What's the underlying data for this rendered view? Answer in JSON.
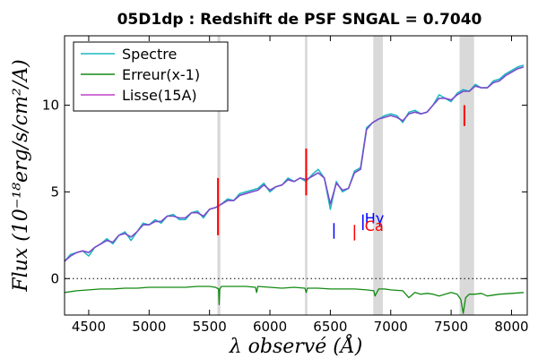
{
  "chart_data": {
    "type": "line",
    "title": "05D1dp : Redshift de PSF SNGAL = 0.7040",
    "xlabel": "λ observé (Å)",
    "ylabel": "Flux (10⁻¹⁸erg/s/cm²/A)",
    "xlim": [
      4300,
      8130
    ],
    "ylim": [
      -2.1,
      14.0
    ],
    "xticks": [
      4500,
      5000,
      5500,
      6000,
      6500,
      7000,
      7500,
      8000
    ],
    "yticks": [
      0,
      5,
      10
    ],
    "legend": {
      "position": "top-left",
      "entries": [
        "Spectre",
        "Erreur(x-1)",
        "Lisse(15A)"
      ]
    },
    "colors": {
      "Spectre": "#1ab8c0",
      "Erreur(x-1)": "#138a13",
      "Lisse(15A)": "#c040c8",
      "Lisse_overlap": "#7a4ccc",
      "sky_residual": "#ff0000",
      "band": "#d9d9d9",
      "line_blue": "#0000ff",
      "line_red": "#ff0000"
    },
    "series": [
      {
        "name": "Spectre",
        "x": [
          4300,
          4350,
          4400,
          4450,
          4500,
          4550,
          4600,
          4650,
          4700,
          4750,
          4800,
          4850,
          4900,
          4950,
          5000,
          5050,
          5100,
          5150,
          5200,
          5250,
          5300,
          5350,
          5400,
          5450,
          5500,
          5550,
          5600,
          5650,
          5700,
          5750,
          5800,
          5850,
          5900,
          5950,
          6000,
          6050,
          6100,
          6150,
          6200,
          6250,
          6300,
          6350,
          6400,
          6450,
          6500,
          6550,
          6600,
          6650,
          6700,
          6750,
          6800,
          6850,
          6900,
          6950,
          7000,
          7050,
          7100,
          7150,
          7200,
          7250,
          7300,
          7350,
          7400,
          7450,
          7500,
          7550,
          7600,
          7650,
          7700,
          7750,
          7800,
          7850,
          7900,
          7950,
          8000,
          8050,
          8100
        ],
        "values": [
          1.0,
          1.4,
          1.5,
          1.6,
          1.3,
          1.8,
          2.0,
          2.3,
          2.0,
          2.5,
          2.7,
          2.2,
          2.7,
          3.2,
          3.1,
          3.4,
          3.2,
          3.6,
          3.7,
          3.4,
          3.4,
          3.8,
          3.9,
          3.5,
          4.0,
          4.1,
          4.3,
          4.6,
          4.5,
          4.9,
          5.0,
          5.1,
          5.2,
          5.5,
          5.0,
          5.3,
          5.4,
          5.8,
          5.6,
          5.8,
          5.6,
          6.0,
          6.3,
          5.8,
          4.0,
          5.6,
          5.0,
          5.2,
          6.2,
          6.4,
          8.7,
          9.0,
          9.2,
          9.4,
          9.5,
          9.4,
          9.0,
          9.6,
          9.7,
          9.5,
          9.6,
          10.0,
          10.6,
          10.4,
          10.2,
          10.7,
          10.9,
          10.8,
          11.2,
          11.0,
          11.0,
          11.4,
          11.5,
          11.8,
          12.0,
          12.2,
          12.3
        ]
      },
      {
        "name": "Lisse(15A)",
        "x": [
          4300,
          4350,
          4400,
          4450,
          4500,
          4550,
          4600,
          4650,
          4700,
          4750,
          4800,
          4850,
          4900,
          4950,
          5000,
          5050,
          5100,
          5150,
          5200,
          5250,
          5300,
          5350,
          5400,
          5450,
          5500,
          5550,
          5600,
          5650,
          5700,
          5750,
          5800,
          5850,
          5900,
          5950,
          6000,
          6050,
          6100,
          6150,
          6200,
          6250,
          6300,
          6350,
          6400,
          6450,
          6500,
          6550,
          6600,
          6650,
          6700,
          6750,
          6800,
          6850,
          6900,
          6950,
          7000,
          7050,
          7100,
          7150,
          7200,
          7250,
          7300,
          7350,
          7400,
          7450,
          7500,
          7550,
          7600,
          7650,
          7700,
          7750,
          7800,
          7850,
          7900,
          7950,
          8000,
          8050,
          8100
        ],
        "values": [
          1.0,
          1.3,
          1.5,
          1.6,
          1.5,
          1.8,
          2.0,
          2.2,
          2.1,
          2.5,
          2.6,
          2.4,
          2.7,
          3.1,
          3.1,
          3.3,
          3.3,
          3.6,
          3.6,
          3.5,
          3.5,
          3.8,
          3.8,
          3.6,
          4.0,
          4.1,
          4.3,
          4.5,
          4.5,
          4.8,
          4.9,
          5.0,
          5.1,
          5.4,
          5.1,
          5.3,
          5.4,
          5.7,
          5.6,
          5.8,
          5.7,
          5.9,
          6.1,
          5.8,
          4.3,
          5.5,
          5.1,
          5.2,
          6.1,
          6.3,
          8.6,
          9.0,
          9.2,
          9.3,
          9.4,
          9.3,
          9.1,
          9.5,
          9.6,
          9.5,
          9.6,
          10.0,
          10.4,
          10.4,
          10.3,
          10.6,
          10.8,
          10.8,
          11.1,
          11.0,
          11.0,
          11.3,
          11.4,
          11.7,
          11.9,
          12.1,
          12.2
        ]
      },
      {
        "name": "Erreur(x-1)",
        "x": [
          4300,
          4400,
          4500,
          4600,
          4700,
          4800,
          4900,
          5000,
          5100,
          5200,
          5300,
          5400,
          5500,
          5550,
          5575,
          5580,
          5585,
          5600,
          5700,
          5800,
          5880,
          5890,
          5900,
          6000,
          6100,
          6200,
          6290,
          6300,
          6310,
          6400,
          6500,
          6600,
          6700,
          6800,
          6860,
          6870,
          6900,
          6950,
          7000,
          7100,
          7150,
          7200,
          7250,
          7300,
          7350,
          7400,
          7450,
          7500,
          7550,
          7580,
          7600,
          7620,
          7650,
          7700,
          7750,
          7800,
          7900,
          8000,
          8100
        ],
        "values": [
          -0.8,
          -0.7,
          -0.65,
          -0.6,
          -0.6,
          -0.55,
          -0.55,
          -0.5,
          -0.5,
          -0.5,
          -0.5,
          -0.45,
          -0.45,
          -0.5,
          -0.6,
          -1.5,
          -0.6,
          -0.45,
          -0.45,
          -0.45,
          -0.5,
          -0.8,
          -0.45,
          -0.5,
          -0.55,
          -0.5,
          -0.55,
          -0.8,
          -0.55,
          -0.55,
          -0.6,
          -0.6,
          -0.6,
          -0.65,
          -0.7,
          -1.0,
          -0.6,
          -0.6,
          -0.65,
          -0.7,
          -1.1,
          -0.8,
          -0.9,
          -0.85,
          -0.9,
          -1.0,
          -0.9,
          -0.8,
          -0.9,
          -1.2,
          -2.0,
          -1.1,
          -0.9,
          -0.9,
          -0.85,
          -1.0,
          -0.9,
          -0.85,
          -0.8
        ]
      }
    ],
    "sky_bands": [
      [
        5565,
        5590
      ],
      [
        6290,
        6310
      ],
      [
        6855,
        6935
      ],
      [
        7570,
        7690
      ]
    ],
    "sky_residuals": [
      {
        "x": 5570,
        "y0": 2.5,
        "y1": 5.8
      },
      {
        "x": 6300,
        "y0": 4.8,
        "y1": 7.5
      },
      {
        "x": 7610,
        "y0": 8.8,
        "y1": 10.0
      }
    ],
    "line_marks": [
      {
        "x": 6530,
        "y0": 2.3,
        "y1": 3.2,
        "color": "#0000ff"
      },
      {
        "x": 6700,
        "y0": 2.2,
        "y1": 3.1,
        "color": "#ff0000"
      },
      {
        "x": 6770,
        "y0": 2.8,
        "y1": 3.7,
        "color": "#0000ff"
      }
    ],
    "line_labels": [
      {
        "text": "Hγ",
        "x": 6785,
        "y": 3.2,
        "color": "#0000ff"
      },
      {
        "text": "Ca",
        "x": 6785,
        "y": 2.75,
        "color": "#ff0000"
      }
    ]
  }
}
